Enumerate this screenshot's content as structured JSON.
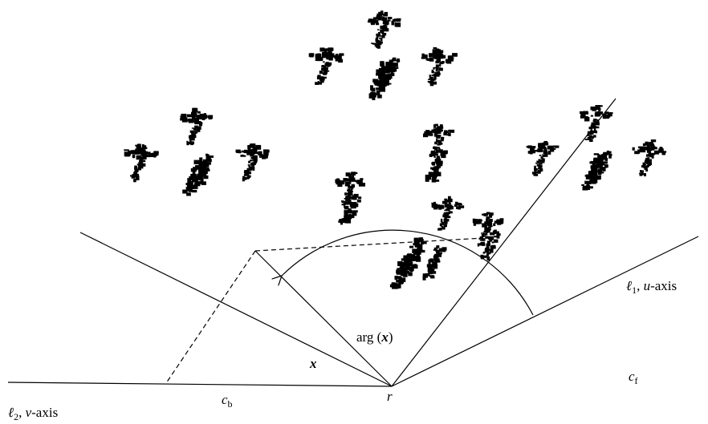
{
  "labels": {
    "l1": {
      "symbol": "ℓ",
      "subscript": "1",
      "separator": ", ",
      "variable": "u",
      "suffix": "-axis"
    },
    "l2": {
      "symbol": "ℓ",
      "subscript": "2",
      "separator": ", ",
      "variable": "v",
      "suffix": "-axis"
    },
    "arg": {
      "function": "arg",
      "open": " (",
      "variable": "x",
      "close": ")"
    },
    "x": "x",
    "r": "r",
    "cb": {
      "symbol": "c",
      "subscript": "b"
    },
    "cf": {
      "symbol": "c",
      "subscript": "f"
    }
  }
}
